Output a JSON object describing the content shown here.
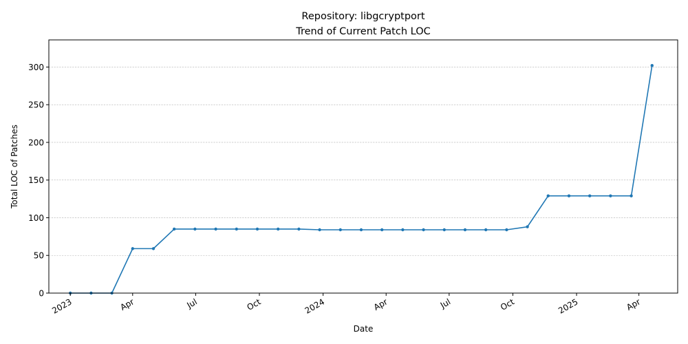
{
  "chart_data": {
    "type": "line",
    "title": "Repository: libgcryptport",
    "subtitle": "Trend of Current Patch LOC",
    "xlabel": "Date",
    "ylabel": "Total LOC of Patches",
    "xlim": [
      "2022-12-01",
      "2025-05-27"
    ],
    "ylim": [
      0,
      336
    ],
    "grid": "y-dashed",
    "x_ticks": [
      {
        "date": "2023-01-01",
        "label": "2023"
      },
      {
        "date": "2023-04-01",
        "label": "Apr"
      },
      {
        "date": "2023-07-01",
        "label": "Jul"
      },
      {
        "date": "2023-10-01",
        "label": "Oct"
      },
      {
        "date": "2024-01-01",
        "label": "2024"
      },
      {
        "date": "2024-04-01",
        "label": "Apr"
      },
      {
        "date": "2024-07-01",
        "label": "Jul"
      },
      {
        "date": "2024-10-01",
        "label": "Oct"
      },
      {
        "date": "2025-01-01",
        "label": "2025"
      },
      {
        "date": "2025-04-01",
        "label": "Apr"
      }
    ],
    "y_ticks": [
      0,
      50,
      100,
      150,
      200,
      250,
      300
    ],
    "series": [
      {
        "color": "#1f77b4",
        "x": [
          "2023-01-01",
          "2023-01-31",
          "2023-03-02",
          "2023-04-01",
          "2023-05-01",
          "2023-05-31",
          "2023-06-30",
          "2023-07-30",
          "2023-08-29",
          "2023-09-28",
          "2023-10-28",
          "2023-11-27",
          "2023-12-27",
          "2024-01-26",
          "2024-02-25",
          "2024-03-26",
          "2024-04-25",
          "2024-05-25",
          "2024-06-24",
          "2024-07-24",
          "2024-08-23",
          "2024-09-22",
          "2024-10-22",
          "2024-11-21",
          "2024-12-21",
          "2025-01-20",
          "2025-02-19",
          "2025-03-21",
          "2025-04-20"
        ],
        "values": [
          0,
          0,
          0,
          59,
          59,
          85,
          85,
          85,
          85,
          85,
          85,
          85,
          84,
          84,
          84,
          84,
          84,
          84,
          84,
          84,
          84,
          84,
          88,
          129,
          129,
          129,
          129,
          129,
          302
        ]
      }
    ]
  }
}
